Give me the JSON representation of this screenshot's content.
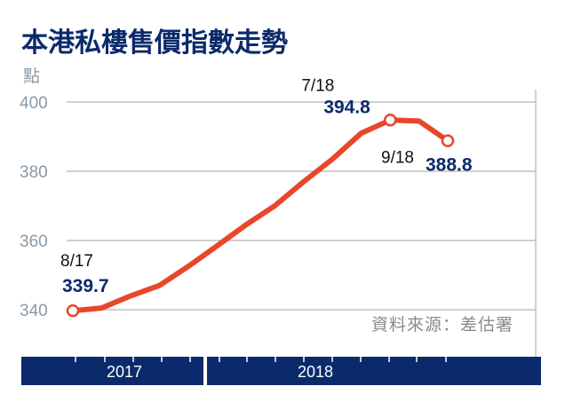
{
  "chart_data": {
    "type": "line",
    "title": "本港私樓售價指數走勢",
    "ylabel": "點",
    "ylim": [
      340,
      400
    ],
    "yticks": [
      "400",
      "380",
      "360",
      "340"
    ],
    "xlim": [
      2017.625,
      2018.917
    ],
    "xticks": [
      "2017",
      "2018"
    ],
    "grid": true,
    "colors": {
      "line": "#e8472b",
      "band": "#0b2a6b",
      "grid": "#b5b5b5",
      "marker_fill": "#ffffff"
    },
    "series": [
      {
        "points": [
          {
            "x": 2017.625,
            "y": 339.7
          },
          {
            "x": 2017.708,
            "y": 340.5
          },
          {
            "x": 2017.792,
            "y": 344.0
          },
          {
            "x": 2017.875,
            "y": 347.0
          },
          {
            "x": 2017.958,
            "y": 352.5
          },
          {
            "x": 2018.042,
            "y": 358.5
          },
          {
            "x": 2018.125,
            "y": 364.5
          },
          {
            "x": 2018.208,
            "y": 370.0
          },
          {
            "x": 2018.292,
            "y": 377.0
          },
          {
            "x": 2018.375,
            "y": 383.5
          },
          {
            "x": 2018.458,
            "y": 391.0
          },
          {
            "x": 2018.542,
            "y": 394.8
          },
          {
            "x": 2018.625,
            "y": 394.5
          },
          {
            "x": 2018.708,
            "y": 388.8
          }
        ]
      }
    ],
    "annotations": [
      {
        "date": "8/17",
        "value": "339.7",
        "x": 2017.625,
        "y": 339.7,
        "anchor": "start"
      },
      {
        "date": "7/18",
        "value": "394.8",
        "x": 2018.542,
        "y": 394.8,
        "anchor": "above"
      },
      {
        "date": "9/18",
        "value": "388.8",
        "x": 2018.708,
        "y": 388.8,
        "anchor": "below"
      }
    ],
    "source": "資料來源：差估署"
  }
}
